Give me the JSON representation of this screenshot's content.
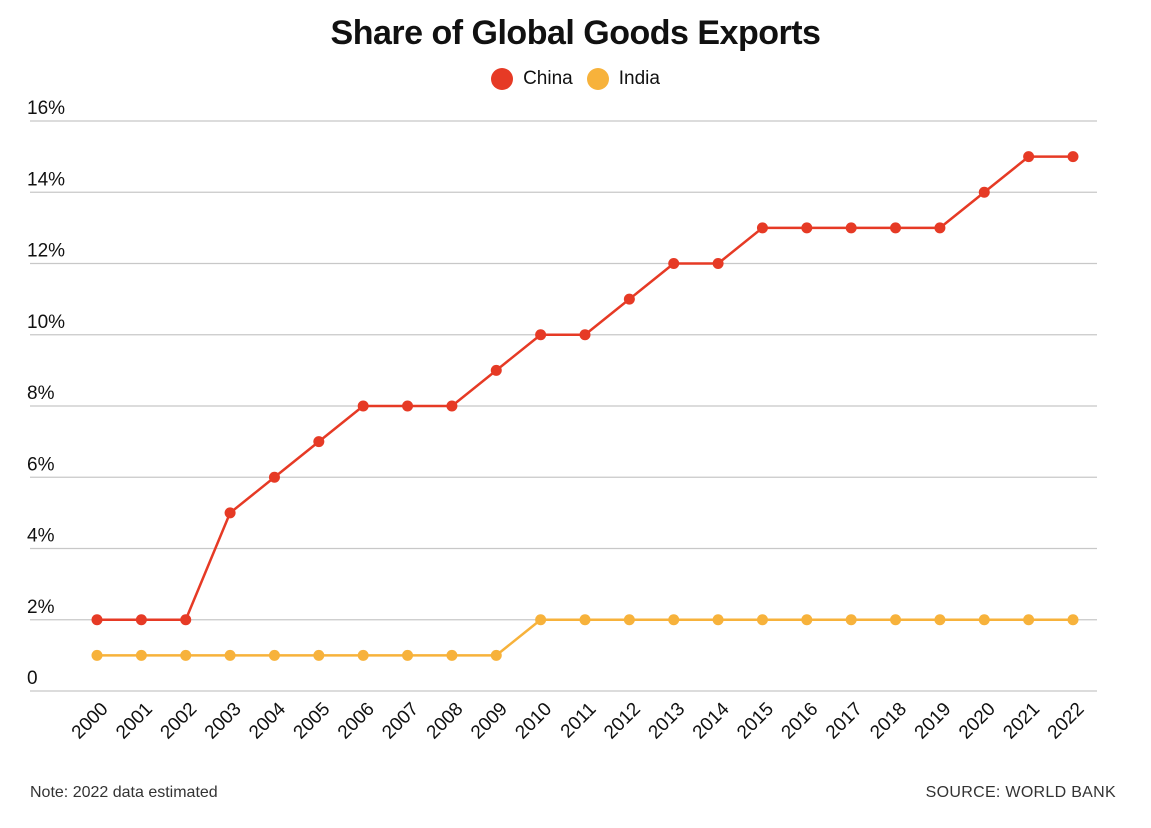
{
  "chart_data": {
    "type": "line",
    "title": "Share of Global Goods Exports",
    "categories": [
      "2000",
      "2001",
      "2002",
      "2003",
      "2004",
      "2005",
      "2006",
      "2007",
      "2008",
      "2009",
      "2010",
      "2011",
      "2012",
      "2013",
      "2014",
      "2015",
      "2016",
      "2017",
      "2018",
      "2019",
      "2020",
      "2021",
      "2022"
    ],
    "series": [
      {
        "name": "China",
        "color": "#e63a25",
        "values": [
          2,
          2,
          2,
          5,
          6,
          7,
          8,
          8,
          8,
          9,
          10,
          10,
          11,
          12,
          12,
          13,
          13,
          13,
          13,
          13,
          14,
          15,
          15
        ]
      },
      {
        "name": "India",
        "color": "#f7b23b",
        "values": [
          1,
          1,
          1,
          1,
          1,
          1,
          1,
          1,
          1,
          1,
          2,
          2,
          2,
          2,
          2,
          2,
          2,
          2,
          2,
          2,
          2,
          2,
          2
        ]
      }
    ],
    "y_ticks": [
      {
        "value": 0,
        "label": "0"
      },
      {
        "value": 2,
        "label": "2%"
      },
      {
        "value": 4,
        "label": "4%"
      },
      {
        "value": 6,
        "label": "6%"
      },
      {
        "value": 8,
        "label": "8%"
      },
      {
        "value": 10,
        "label": "10%"
      },
      {
        "value": 12,
        "label": "12%"
      },
      {
        "value": 14,
        "label": "14%"
      },
      {
        "value": 16,
        "label": "16%"
      }
    ],
    "ylim": [
      0,
      16
    ],
    "xlabel": "",
    "ylabel": "",
    "grid": true,
    "legend": "top-center"
  },
  "footer": {
    "note": "Note: 2022 data estimated",
    "source": "SOURCE: WORLD BANK"
  },
  "colors": {
    "grid": "#c8c8c8",
    "text": "#111111"
  }
}
